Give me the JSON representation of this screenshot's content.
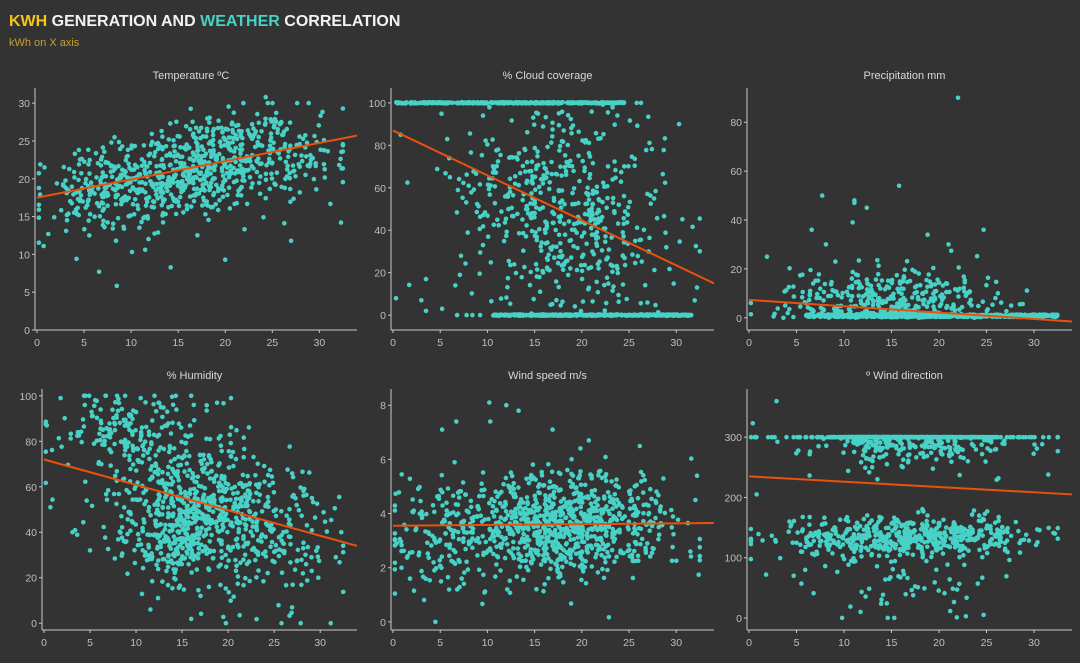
{
  "header": {
    "title_kwh": "KWH",
    "title_mid": " GENERATION AND ",
    "title_weather": "WEATHER",
    "title_end": " CORRELATION",
    "subtitle": "kWh on X axis"
  },
  "colors": {
    "background": "#333333",
    "kwh": "#f5c518",
    "weather": "#48d1c6",
    "subtitle": "#c9a227",
    "dots": "#48d1c6",
    "trend": "#e8520e"
  },
  "chart_data": [
    {
      "type": "scatter",
      "title": "Temperature ºC",
      "xlabel": "kWh",
      "ylabel": "Temperature ºC",
      "xlim": [
        0,
        34
      ],
      "ylim": [
        0,
        32
      ],
      "xticks": [
        "0",
        "5",
        "10",
        "15",
        "20",
        "25",
        "30"
      ],
      "xtick_values": [
        0,
        5,
        10,
        15,
        20,
        25,
        30
      ],
      "yticks": [
        "0",
        "5",
        "10",
        "15",
        "20",
        "25",
        "30"
      ],
      "ytick_values": [
        0,
        5,
        10,
        15,
        20,
        25,
        30
      ],
      "trend": {
        "x": [
          0,
          34
        ],
        "y": [
          17.5,
          25.7
        ]
      },
      "clusters": [
        {
          "n": 650,
          "cx": 17,
          "sx": 5.5,
          "cy": 21.3,
          "sy": 3.2,
          "slope": 0.24
        },
        {
          "n": 120,
          "cx": 6,
          "sx": 3,
          "cy": 18.5,
          "sy": 3,
          "slope": 0.2
        },
        {
          "n": 60,
          "cx": 28,
          "sx": 2.5,
          "cy": 21.5,
          "sy": 3,
          "slope": 0
        }
      ],
      "outliers": [
        [
          0.8,
          21.5
        ],
        [
          1.2,
          12.7
        ],
        [
          4.2,
          9.4
        ],
        [
          6.6,
          7.7
        ],
        [
          20,
          9.3
        ],
        [
          32.3,
          14.2
        ],
        [
          24.3,
          30.8
        ],
        [
          11.5,
          10.6
        ],
        [
          27,
          11.8
        ]
      ]
    },
    {
      "type": "scatter",
      "title": "% Cloud coverage",
      "xlabel": "kWh",
      "ylabel": "% Cloud coverage",
      "xlim": [
        0,
        34
      ],
      "ylim": [
        -7,
        107
      ],
      "xticks": [
        "0",
        "5",
        "10",
        "15",
        "20",
        "25",
        "30"
      ],
      "xtick_values": [
        0,
        5,
        10,
        15,
        20,
        25,
        30
      ],
      "yticks": [
        "0",
        "20",
        "40",
        "60",
        "80",
        "100"
      ],
      "ytick_values": [
        0,
        20,
        40,
        60,
        80,
        100
      ],
      "trend": {
        "x": [
          0,
          34
        ],
        "y": [
          87,
          15
        ]
      },
      "bands": [
        {
          "n": 320,
          "y": 100,
          "xmin": 0.3,
          "xmax": 24.5,
          "jitter": 0.6
        },
        {
          "n": 320,
          "y": 0,
          "xmin": 10.5,
          "xmax": 31.5,
          "jitter": 0.6
        }
      ],
      "clusters": [
        {
          "n": 600,
          "cx": 18,
          "sx": 5.5,
          "cy": 50,
          "sy": 30,
          "slope": -1.2
        }
      ],
      "outliers": [
        [
          0.8,
          85
        ],
        [
          3,
          7
        ],
        [
          3.5,
          17
        ],
        [
          3.5,
          2
        ],
        [
          5.2,
          3
        ],
        [
          6.6,
          14
        ],
        [
          7.8,
          0
        ],
        [
          30.3,
          90
        ],
        [
          32.2,
          13
        ],
        [
          31.6,
          0
        ]
      ]
    },
    {
      "type": "scatter",
      "title": "Precipitation mm",
      "xlabel": "kWh",
      "ylabel": "Precipitation mm",
      "xlim": [
        0,
        34
      ],
      "ylim": [
        -5,
        94
      ],
      "xticks": [
        "0",
        "5",
        "10",
        "15",
        "20",
        "25",
        "30"
      ],
      "xtick_values": [
        0,
        5,
        10,
        15,
        20,
        25,
        30
      ],
      "yticks": [
        "0",
        "20",
        "40",
        "60",
        "80"
      ],
      "ytick_values": [
        0,
        20,
        40,
        60,
        80
      ],
      "trend": {
        "x": [
          0,
          34
        ],
        "y": [
          7.3,
          -1.5
        ]
      },
      "bands": [
        {
          "n": 550,
          "y": 0.8,
          "xmin": 6,
          "xmax": 32.5,
          "jitter": 1.0
        }
      ],
      "clusters": [
        {
          "n": 380,
          "cx": 14,
          "sx": 5.5,
          "cy": 7,
          "sy": 7,
          "slope": 0,
          "floor": 0
        }
      ],
      "outliers": [
        [
          22,
          90
        ],
        [
          15.8,
          54
        ],
        [
          7.7,
          50
        ],
        [
          11.1,
          48
        ],
        [
          11.1,
          47
        ],
        [
          12.4,
          45
        ],
        [
          10.9,
          39
        ],
        [
          6.6,
          36
        ],
        [
          24.7,
          36
        ],
        [
          18.8,
          34
        ],
        [
          21,
          30
        ],
        [
          8.1,
          30
        ],
        [
          1.9,
          25
        ],
        [
          26.2,
          10
        ],
        [
          27.6,
          5
        ]
      ]
    },
    {
      "type": "scatter",
      "title": "% Humidity",
      "xlabel": "kWh",
      "ylabel": "% Humidity",
      "xlim": [
        0,
        34
      ],
      "ylim": [
        -3,
        103
      ],
      "xticks": [
        "0",
        "5",
        "10",
        "15",
        "20",
        "25",
        "30"
      ],
      "xtick_values": [
        0,
        5,
        10,
        15,
        20,
        25,
        30
      ],
      "yticks": [
        "0",
        "20",
        "40",
        "60",
        "80",
        "100"
      ],
      "ytick_values": [
        0,
        20,
        40,
        60,
        80,
        100
      ],
      "trend": {
        "x": [
          0,
          34
        ],
        "y": [
          72,
          34
        ]
      },
      "clusters": [
        {
          "n": 700,
          "cx": 18,
          "sx": 5.5,
          "cy": 50,
          "sy": 17,
          "slope": -1.1
        },
        {
          "n": 150,
          "cx": 9,
          "sx": 3.5,
          "cy": 85,
          "sy": 10,
          "slope": 0
        },
        {
          "n": 150,
          "cx": 14,
          "sx": 2,
          "cy": 35,
          "sy": 8,
          "slope": 0
        }
      ],
      "outliers": [
        [
          0.3,
          87
        ],
        [
          0.7,
          51
        ],
        [
          1.8,
          99
        ],
        [
          3.1,
          40
        ],
        [
          5,
          32
        ],
        [
          29.8,
          20
        ],
        [
          31.7,
          29
        ],
        [
          32.3,
          40
        ],
        [
          17,
          12
        ]
      ]
    },
    {
      "type": "scatter",
      "title": "Wind speed m/s",
      "xlabel": "kWh",
      "ylabel": "Wind speed m/s",
      "xlim": [
        0,
        34
      ],
      "ylim": [
        -0.3,
        8.6
      ],
      "xticks": [
        "0",
        "5",
        "10",
        "15",
        "20",
        "25",
        "30"
      ],
      "xtick_values": [
        0,
        5,
        10,
        15,
        20,
        25,
        30
      ],
      "yticks": [
        "0",
        "2",
        "4",
        "6",
        "8"
      ],
      "ytick_values": [
        0,
        2,
        4,
        6,
        8
      ],
      "trend": {
        "x": [
          0,
          34
        ],
        "y": [
          3.55,
          3.65
        ]
      },
      "clusters": [
        {
          "n": 900,
          "cx": 17.5,
          "sx": 5.8,
          "cy": 3.6,
          "sy": 0.95,
          "slope": 0
        },
        {
          "n": 100,
          "cx": 5,
          "sx": 3,
          "cy": 3.5,
          "sy": 1.2,
          "slope": 0
        }
      ],
      "outliers": [
        [
          10.2,
          8.1
        ],
        [
          12,
          8
        ],
        [
          13.3,
          7.8
        ],
        [
          6.7,
          7.4
        ],
        [
          10.3,
          7.4
        ],
        [
          5.2,
          7.1
        ],
        [
          16.9,
          7.1
        ],
        [
          0.4,
          2.9
        ],
        [
          0.9,
          2
        ],
        [
          1.8,
          1.6
        ],
        [
          32.2,
          5.4
        ],
        [
          31.5,
          2.6
        ],
        [
          12.1,
          1.2
        ],
        [
          6.8,
          1.2
        ]
      ]
    },
    {
      "type": "scatter",
      "title": "º Wind direction",
      "xlabel": "kWh",
      "ylabel": "º Wind direction",
      "xlim": [
        0,
        34
      ],
      "ylim": [
        -20,
        380
      ],
      "xticks": [
        "0",
        "5",
        "10",
        "15",
        "20",
        "25",
        "30"
      ],
      "xtick_values": [
        0,
        5,
        10,
        15,
        20,
        25,
        30
      ],
      "yticks": [
        "0",
        "100",
        "200",
        "300"
      ],
      "ytick_values": [
        0,
        100,
        200,
        300
      ],
      "trend": {
        "x": [
          0,
          34
        ],
        "y": [
          235,
          205
        ]
      },
      "clusters": [
        {
          "n": 520,
          "cx": 17,
          "sx": 6,
          "cy": 310,
          "sy": 25,
          "slope": 0
        },
        {
          "n": 130,
          "cx": 13.5,
          "sx": 2,
          "cy": 320,
          "sy": 20,
          "slope": 0
        },
        {
          "n": 560,
          "cx": 17,
          "sx": 6.5,
          "cy": 133,
          "sy": 16,
          "slope": 0
        },
        {
          "n": 50,
          "cx": 17,
          "sx": 5,
          "cy": 50,
          "sy": 30,
          "slope": 0
        }
      ],
      "outliers": [
        [
          0.4,
          323
        ],
        [
          0.8,
          205
        ],
        [
          1.8,
          72
        ],
        [
          4.7,
          70
        ],
        [
          6.8,
          41
        ],
        [
          2.9,
          360
        ],
        [
          14.6,
          0
        ],
        [
          15.3,
          0
        ],
        [
          9.8,
          0
        ],
        [
          24.7,
          5
        ],
        [
          31.5,
          238
        ],
        [
          32.2,
          140
        ]
      ]
    }
  ]
}
